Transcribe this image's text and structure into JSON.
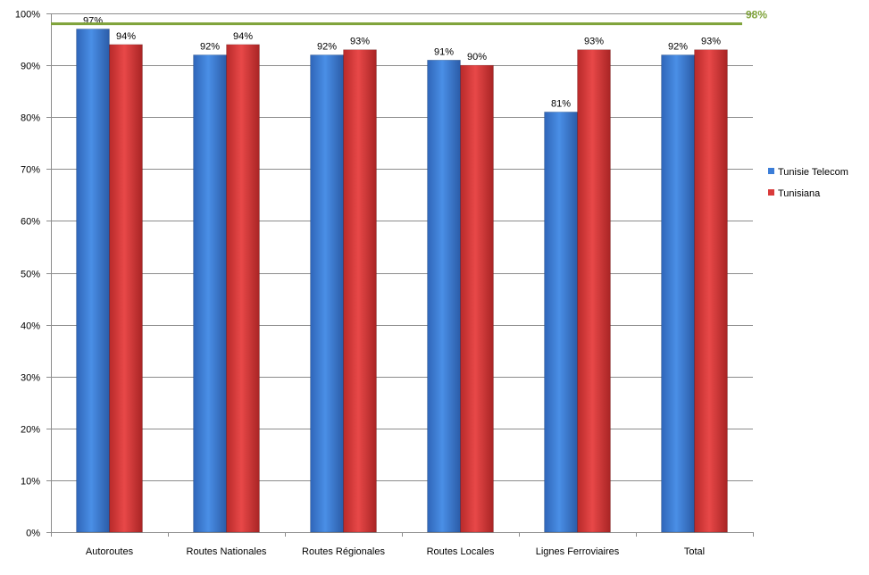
{
  "chart_data": {
    "type": "bar",
    "categories": [
      "Autoroutes",
      "Routes Nationales",
      "Routes Régionales",
      "Routes Locales",
      "Lignes Ferroviaires",
      "Total"
    ],
    "series": [
      {
        "name": "Tunisie Telecom",
        "values": [
          97,
          92,
          92,
          91,
          81,
          92
        ],
        "labels": [
          "97%",
          "92%",
          "92%",
          "91%",
          "81%",
          "92%"
        ],
        "color": "#3B7DD8"
      },
      {
        "name": "Tunisiana",
        "values": [
          94,
          94,
          93,
          90,
          93,
          93
        ],
        "labels": [
          "94%",
          "94%",
          "93%",
          "90%",
          "93%",
          "93%"
        ],
        "color": "#D93A3A"
      }
    ],
    "ylim": [
      0,
      100
    ],
    "yticks": [
      0,
      10,
      20,
      30,
      40,
      50,
      60,
      70,
      80,
      90,
      100
    ],
    "ytick_labels": [
      "0%",
      "10%",
      "20%",
      "30%",
      "40%",
      "50%",
      "60%",
      "70%",
      "80%",
      "90%",
      "100%"
    ],
    "grid": true,
    "legend_position": "right",
    "target_line": {
      "value": 98,
      "label": "98%",
      "color": "#7FA33A"
    }
  }
}
